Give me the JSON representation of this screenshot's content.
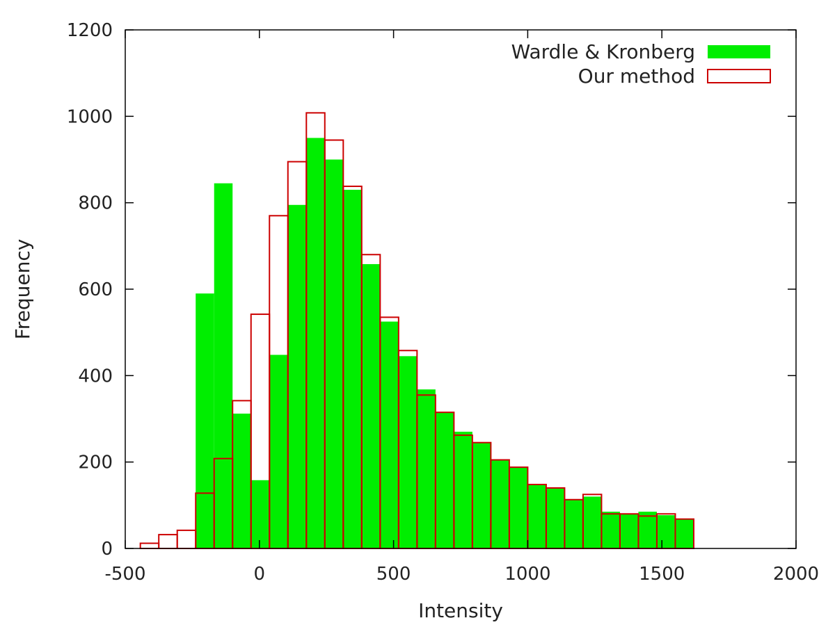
{
  "chart_data": {
    "type": "bar",
    "title": "",
    "xlabel": "Intensity",
    "ylabel": "Frequency",
    "xlim": [
      -500,
      2000
    ],
    "ylim": [
      0,
      1200
    ],
    "xticks": [
      -500,
      0,
      500,
      1000,
      1500,
      2000
    ],
    "yticks": [
      0,
      200,
      400,
      600,
      800,
      1000,
      1200
    ],
    "grid": false,
    "legend_position": "top-right",
    "bin_width": 68.75,
    "bin_starts": [
      -443.75,
      -375,
      -306.25,
      -237.5,
      -168.75,
      -100,
      -31.25,
      37.5,
      106.25,
      175,
      243.75,
      312.5,
      381.25,
      450,
      518.75,
      587.5,
      656.25,
      725,
      793.75,
      862.5,
      931.25,
      1000,
      1068.75,
      1137.5,
      1206.25,
      1275,
      1343.75,
      1412.5,
      1481.25,
      1550
    ],
    "series": [
      {
        "name": "Wardle & Kronberg",
        "style": "filled",
        "color": "#00ee00",
        "values": [
          0,
          0,
          0,
          590,
          845,
          312,
          158,
          448,
          795,
          950,
          900,
          830,
          658,
          525,
          445,
          368,
          315,
          270,
          245,
          205,
          188,
          148,
          140,
          113,
          120,
          85,
          80,
          85,
          77,
          68
        ]
      },
      {
        "name": "Our method",
        "style": "outline",
        "color": "#cc0000",
        "values": [
          12,
          32,
          42,
          128,
          208,
          342,
          542,
          770,
          895,
          1008,
          945,
          838,
          680,
          535,
          458,
          355,
          315,
          262,
          245,
          205,
          188,
          148,
          140,
          113,
          125,
          80,
          80,
          75,
          80,
          68
        ]
      }
    ]
  }
}
